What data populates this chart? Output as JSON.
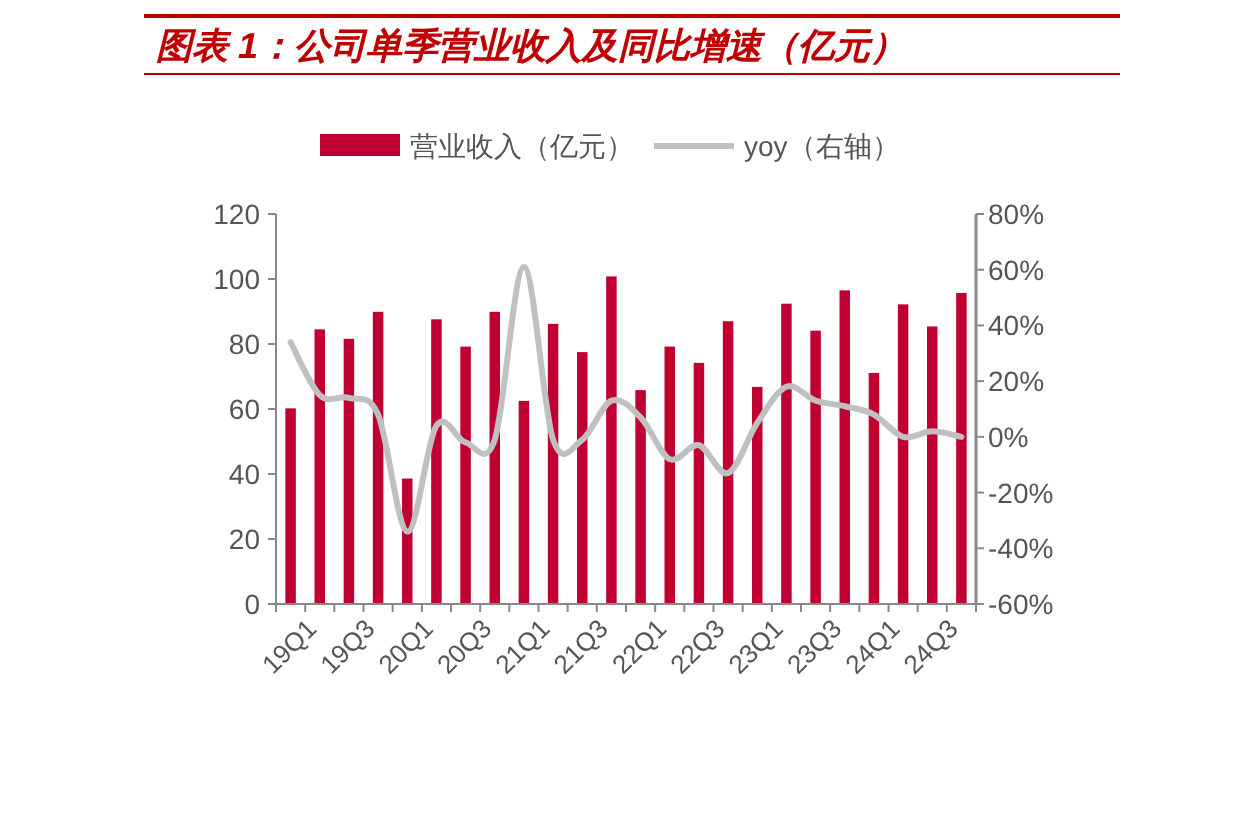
{
  "chart_data": {
    "type": "bar",
    "title": "图表 1：公司单季营业收入及同比增速（亿元）",
    "categories": [
      "19Q1",
      null,
      "19Q3",
      null,
      "20Q1",
      null,
      "20Q3",
      null,
      "21Q1",
      null,
      "21Q3",
      null,
      "22Q1",
      null,
      "22Q3",
      null,
      "23Q1",
      null,
      "23Q3",
      null,
      "24Q1",
      null,
      "24Q3",
      null
    ],
    "series": [
      {
        "name": "营业收入（亿元）",
        "color": "#c00030",
        "values": [
          60.2,
          84.5,
          81.6,
          89.9,
          38.6,
          87.6,
          79.2,
          89.9,
          62.5,
          86.2,
          77.5,
          100.8,
          65.8,
          79.2,
          74.2,
          87,
          66.8,
          92.4,
          84.1,
          96.5,
          71.1,
          92.2,
          85.4,
          95.7
        ]
      },
      {
        "name": "yoy（右轴）",
        "type": "line",
        "axis": "y2",
        "color": "#c0c0c0",
        "values": [
          34,
          15,
          14,
          8,
          -34,
          4,
          -2,
          -1,
          61,
          -1,
          -1,
          13,
          7,
          -8,
          -3,
          -13,
          5,
          18,
          13,
          11,
          8,
          0,
          2,
          0
        ]
      }
    ],
    "ylim": [
      0,
      120
    ],
    "yticks": [
      0,
      20,
      40,
      60,
      80,
      100,
      120
    ],
    "y2lim": [
      -60,
      80
    ],
    "y2ticks": [
      {
        "value": -60,
        "label": "-60%"
      },
      {
        "value": -40,
        "label": "-40%"
      },
      {
        "value": -20,
        "label": "-20%"
      },
      {
        "value": 0,
        "label": "0%"
      },
      {
        "value": 20,
        "label": "20%"
      },
      {
        "value": 40,
        "label": "40%"
      },
      {
        "value": 60,
        "label": "60%"
      },
      {
        "value": 80,
        "label": "80%"
      }
    ],
    "legend": "top",
    "grid": false
  }
}
